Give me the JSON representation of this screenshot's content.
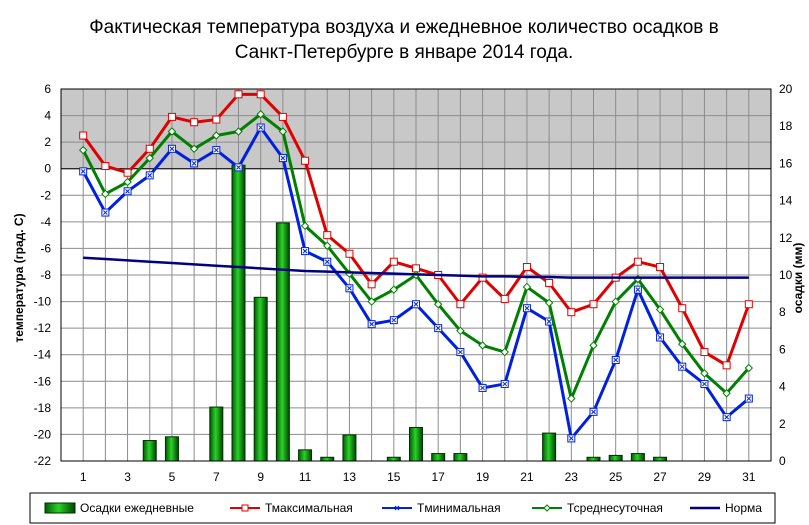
{
  "chart_data": {
    "type": "bar+line",
    "title_lines": [
      "Фактическая температура воздуха и ежедневное количество осадков в",
      "Санкт-Петербурге в январе 2014 года."
    ],
    "ylabel_left": "температура (град. С)",
    "ylabel_right": "осадки (мм)",
    "days": [
      1,
      2,
      3,
      4,
      5,
      6,
      7,
      8,
      9,
      10,
      11,
      12,
      13,
      14,
      15,
      16,
      17,
      18,
      19,
      20,
      21,
      22,
      23,
      24,
      25,
      26,
      27,
      28,
      29,
      30,
      31
    ],
    "x_tick_labels": [
      "1",
      "3",
      "5",
      "7",
      "9",
      "11",
      "13",
      "15",
      "17",
      "19",
      "21",
      "23",
      "25",
      "27",
      "29",
      "31"
    ],
    "ylim_left": [
      -22,
      6
    ],
    "ylim_right": [
      0,
      20
    ],
    "y_ticks_left": [
      "6",
      "4",
      "2",
      "0",
      "-2",
      "-4",
      "-6",
      "-8",
      "-10",
      "-12",
      "-14",
      "-16",
      "-18",
      "-20",
      "-22"
    ],
    "y_ticks_right": [
      "20",
      "18",
      "16",
      "14",
      "12",
      "10",
      "8",
      "6",
      "4",
      "2",
      "0"
    ],
    "grid": true,
    "series": [
      {
        "name": "Осадки ежедневные",
        "kind": "bar",
        "axis": "right",
        "color": "#00a000",
        "values": [
          0,
          0,
          0,
          1.1,
          1.3,
          0,
          2.9,
          15.9,
          8.8,
          12.8,
          0.6,
          0.2,
          1.4,
          0,
          0.2,
          1.8,
          0.4,
          0.4,
          0,
          0,
          0,
          1.5,
          0,
          0.2,
          0.3,
          0.4,
          0.2,
          0,
          0,
          0,
          0
        ]
      },
      {
        "name": "Тмаксимальная",
        "kind": "line",
        "axis": "left",
        "color": "#e00000",
        "values": [
          2.5,
          0.2,
          -0.3,
          1.5,
          3.9,
          3.5,
          3.7,
          5.6,
          5.6,
          3.9,
          0.6,
          -5.0,
          -6.4,
          -8.7,
          -7.0,
          -7.5,
          -8.0,
          -10.2,
          -8.2,
          -9.8,
          -7.4,
          -8.6,
          -10.8,
          -10.2,
          -8.2,
          -7.0,
          -7.4,
          -10.5,
          -13.8,
          -14.8,
          -10.2
        ]
      },
      {
        "name": "Tминимальная",
        "kind": "line",
        "axis": "left",
        "color": "#0020e0",
        "values": [
          -0.2,
          -3.3,
          -1.7,
          -0.5,
          1.5,
          0.4,
          1.4,
          0.1,
          3.1,
          0.8,
          -6.2,
          -7.0,
          -9.0,
          -11.7,
          -11.4,
          -10.2,
          -12.0,
          -13.8,
          -16.5,
          -16.2,
          -10.5,
          -11.5,
          -20.3,
          -18.3,
          -14.4,
          -9.1,
          -12.7,
          -14.9,
          -16.2,
          -18.7,
          -17.3
        ]
      },
      {
        "name": "Тсреднесуточная",
        "kind": "line",
        "axis": "left",
        "color": "#008000",
        "values": [
          1.4,
          -1.9,
          -1.0,
          0.8,
          2.8,
          1.5,
          2.5,
          2.8,
          4.1,
          2.8,
          -4.3,
          -5.8,
          -7.9,
          -10.0,
          -9.1,
          -8.0,
          -10.2,
          -12.2,
          -13.3,
          -13.8,
          -8.9,
          -10.1,
          -17.3,
          -13.3,
          -10.0,
          -8.3,
          -10.6,
          -13.2,
          -15.4,
          -16.9,
          -15.0
        ]
      },
      {
        "name": "Норма",
        "kind": "line",
        "axis": "left",
        "color": "#000080",
        "values": [
          -6.7,
          -6.8,
          -6.9,
          -7.0,
          -7.1,
          -7.2,
          -7.3,
          -7.4,
          -7.5,
          -7.6,
          -7.7,
          -7.75,
          -7.8,
          -7.85,
          -7.9,
          -7.95,
          -8.0,
          -8.05,
          -8.1,
          -8.1,
          -8.15,
          -8.15,
          -8.2,
          -8.2,
          -8.2,
          -8.2,
          -8.2,
          -8.2,
          -8.2,
          -8.2,
          -8.2
        ]
      }
    ],
    "legend_position": "bottom"
  }
}
